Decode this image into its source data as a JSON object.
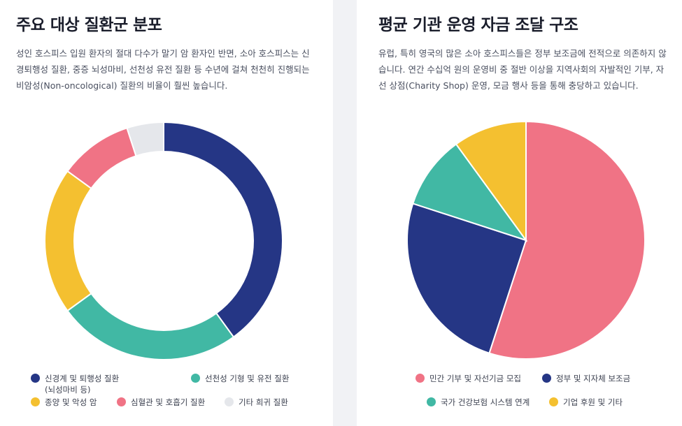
{
  "cards": [
    {
      "title": "주요 대상 질환군 분포",
      "description": "성인 호스피스 입원 환자의 절대 다수가 말기 암 환자인 반면, 소아 호스피스는 신경퇴행성 질환, 중증 뇌성마비, 선천성 유전 질환 등 수년에 걸쳐 천천히 진행되는 비암성(Non-oncological) 질환의 비율이 훨씬 높습니다."
    },
    {
      "title": "평균 기관 운영 자금 조달 구조",
      "description": "유럽, 특히 영국의 많은 소아 호스피스들은 정부 보조금에 전적으로 의존하지 않습니다. 연간 수십억 원의 운영비 중 절반 이상을 지역사회의 자발적인 기부, 자선 상점(Charity Shop) 운영, 모금 행사 등을 통해 충당하고 있습니다."
    }
  ],
  "chart_data": [
    {
      "type": "pie",
      "variant": "donut",
      "title": "",
      "categories": [
        "신경계 및 퇴행성 질환\n(뇌성마비 등)",
        "선천성 기형 및 유전 질환",
        "종양 및 악성 암",
        "심혈관 및 호흡기 질환",
        "기타 희귀 질환"
      ],
      "values": [
        40,
        25,
        20,
        10,
        5
      ],
      "colors": [
        "#253685",
        "#41b8a4",
        "#f4c030",
        "#f07385",
        "#e5e7eb"
      ],
      "legend_position": "bottom"
    },
    {
      "type": "pie",
      "title": "",
      "categories": [
        "민간 기부 및 자선기금 모집",
        "정부 및 지자체 보조금",
        "국가 건강보험 시스템 연계",
        "기업 후원 및 기타"
      ],
      "values": [
        55,
        25,
        10,
        10
      ],
      "colors": [
        "#f07385",
        "#253685",
        "#41b8a4",
        "#f4c030"
      ],
      "legend_position": "bottom"
    }
  ]
}
